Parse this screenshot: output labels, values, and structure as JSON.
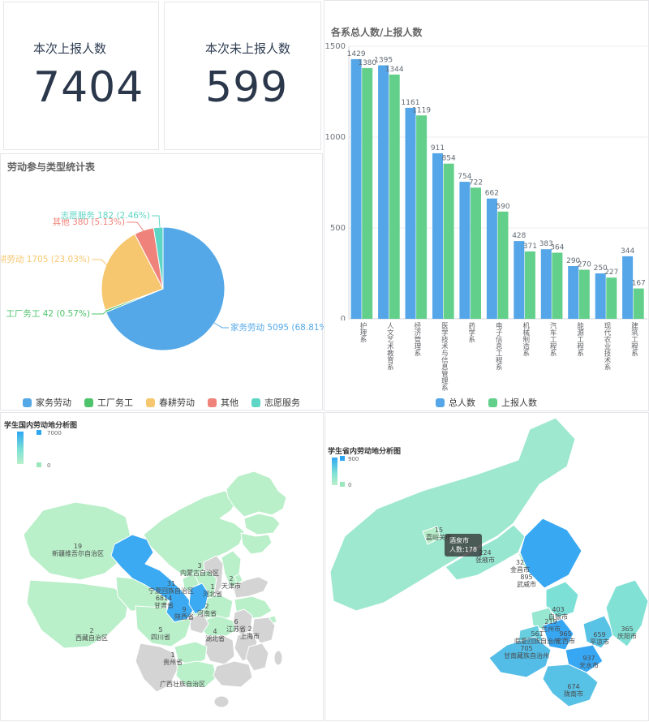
{
  "panels": {
    "stats": [
      {
        "label": "本次上报人数",
        "value": "7404"
      },
      {
        "label": "本次未上报人数",
        "value": "599"
      }
    ]
  },
  "chart_data": [
    {
      "id": "labor-type-pie",
      "type": "pie",
      "title": "劳动参与类型统计表",
      "legend_position": "bottom",
      "series": [
        {
          "name": "家务劳动",
          "value": 5095,
          "percent": "68.81%",
          "color": "#54a8e8"
        },
        {
          "name": "工厂务工",
          "value": 42,
          "percent": "0.57%",
          "color": "#4ec36c"
        },
        {
          "name": "春耕劳动",
          "value": 1705,
          "percent": "23.03%",
          "color": "#f6c76f"
        },
        {
          "name": "其他",
          "value": 380,
          "percent": "5.13%",
          "color": "#ef837b"
        },
        {
          "name": "志愿服务",
          "value": 182,
          "percent": "2.46%",
          "color": "#5ed6c5"
        }
      ]
    },
    {
      "id": "department-bar",
      "type": "bar",
      "title": "各系总人数/上报人数",
      "categories": [
        "护理系",
        "人文艺术教育系",
        "经济管理系",
        "医学技术与信息管理系",
        "药学系",
        "电子信息工程系",
        "机械制造系",
        "汽车工程系",
        "能源工程系",
        "现代农业技术系",
        "建筑工程系"
      ],
      "series": [
        {
          "name": "总人数",
          "color": "#54a6e8",
          "values": [
            1429,
            1395,
            1161,
            911,
            754,
            662,
            428,
            383,
            290,
            250,
            344
          ]
        },
        {
          "name": "上报人数",
          "color": "#62cf8a",
          "values": [
            1380,
            1344,
            1119,
            854,
            722,
            590,
            371,
            364,
            270,
            227,
            167
          ]
        }
      ],
      "ylim": [
        0,
        1500
      ],
      "yticks": [
        0,
        500,
        1000,
        1500
      ],
      "grid": true,
      "legend_position": "bottom"
    },
    {
      "id": "china-map",
      "type": "heatmap",
      "subtype": "choropleth-map",
      "map_of": "China",
      "title": "学生国内劳动地分析图",
      "visual_range": {
        "min": 0,
        "max": 7000
      },
      "regions": [
        {
          "name": "新疆维吾尔自治区",
          "value": 19
        },
        {
          "name": "西藏自治区",
          "value": 2
        },
        {
          "name": "四川省",
          "value": 5
        },
        {
          "name": "贵州省",
          "value": 1
        },
        {
          "name": "广西壮族自治区",
          "value": null
        },
        {
          "name": "内蒙古自治区",
          "value": 3
        },
        {
          "name": "宁夏回族自治区",
          "value": 31
        },
        {
          "name": "甘肃省",
          "value": 6814
        },
        {
          "name": "陕西省",
          "value": 9
        },
        {
          "name": "天津市",
          "value": 2
        },
        {
          "name": "河北省",
          "value": 1
        },
        {
          "name": "河南省",
          "value": 2
        },
        {
          "name": "湖北省",
          "value": 4
        },
        {
          "name": "江苏省",
          "value": 6
        },
        {
          "name": "上海市",
          "value": 2
        }
      ]
    },
    {
      "id": "gansu-map",
      "type": "heatmap",
      "subtype": "choropleth-map",
      "map_of": "Gansu",
      "title": "学生省内劳动地分析图",
      "visual_range": {
        "min": 0,
        "max": 900
      },
      "regions": [
        {
          "name": "酒泉市",
          "value": 178,
          "show_label": false
        },
        {
          "name": "嘉峪关市",
          "value": 15
        },
        {
          "name": "张掖市",
          "value": 224
        },
        {
          "name": "金昌市",
          "value": 32
        },
        {
          "name": "武威市",
          "value": 895
        },
        {
          "name": "白银市",
          "value": 403
        },
        {
          "name": "兰州市",
          "value": 219
        },
        {
          "name": "临夏回族自治州",
          "value": 561
        },
        {
          "name": "甘南藏族自治州",
          "value": 705
        },
        {
          "name": "定西市",
          "value": 965
        },
        {
          "name": "天水市",
          "value": 937
        },
        {
          "name": "平凉市",
          "value": 659
        },
        {
          "name": "庆阳市",
          "value": 365
        },
        {
          "name": "陇南市",
          "value": 674
        }
      ],
      "tooltip": {
        "region": "酒泉市",
        "line1": "酒泉市",
        "line2": "人数:178"
      }
    }
  ]
}
